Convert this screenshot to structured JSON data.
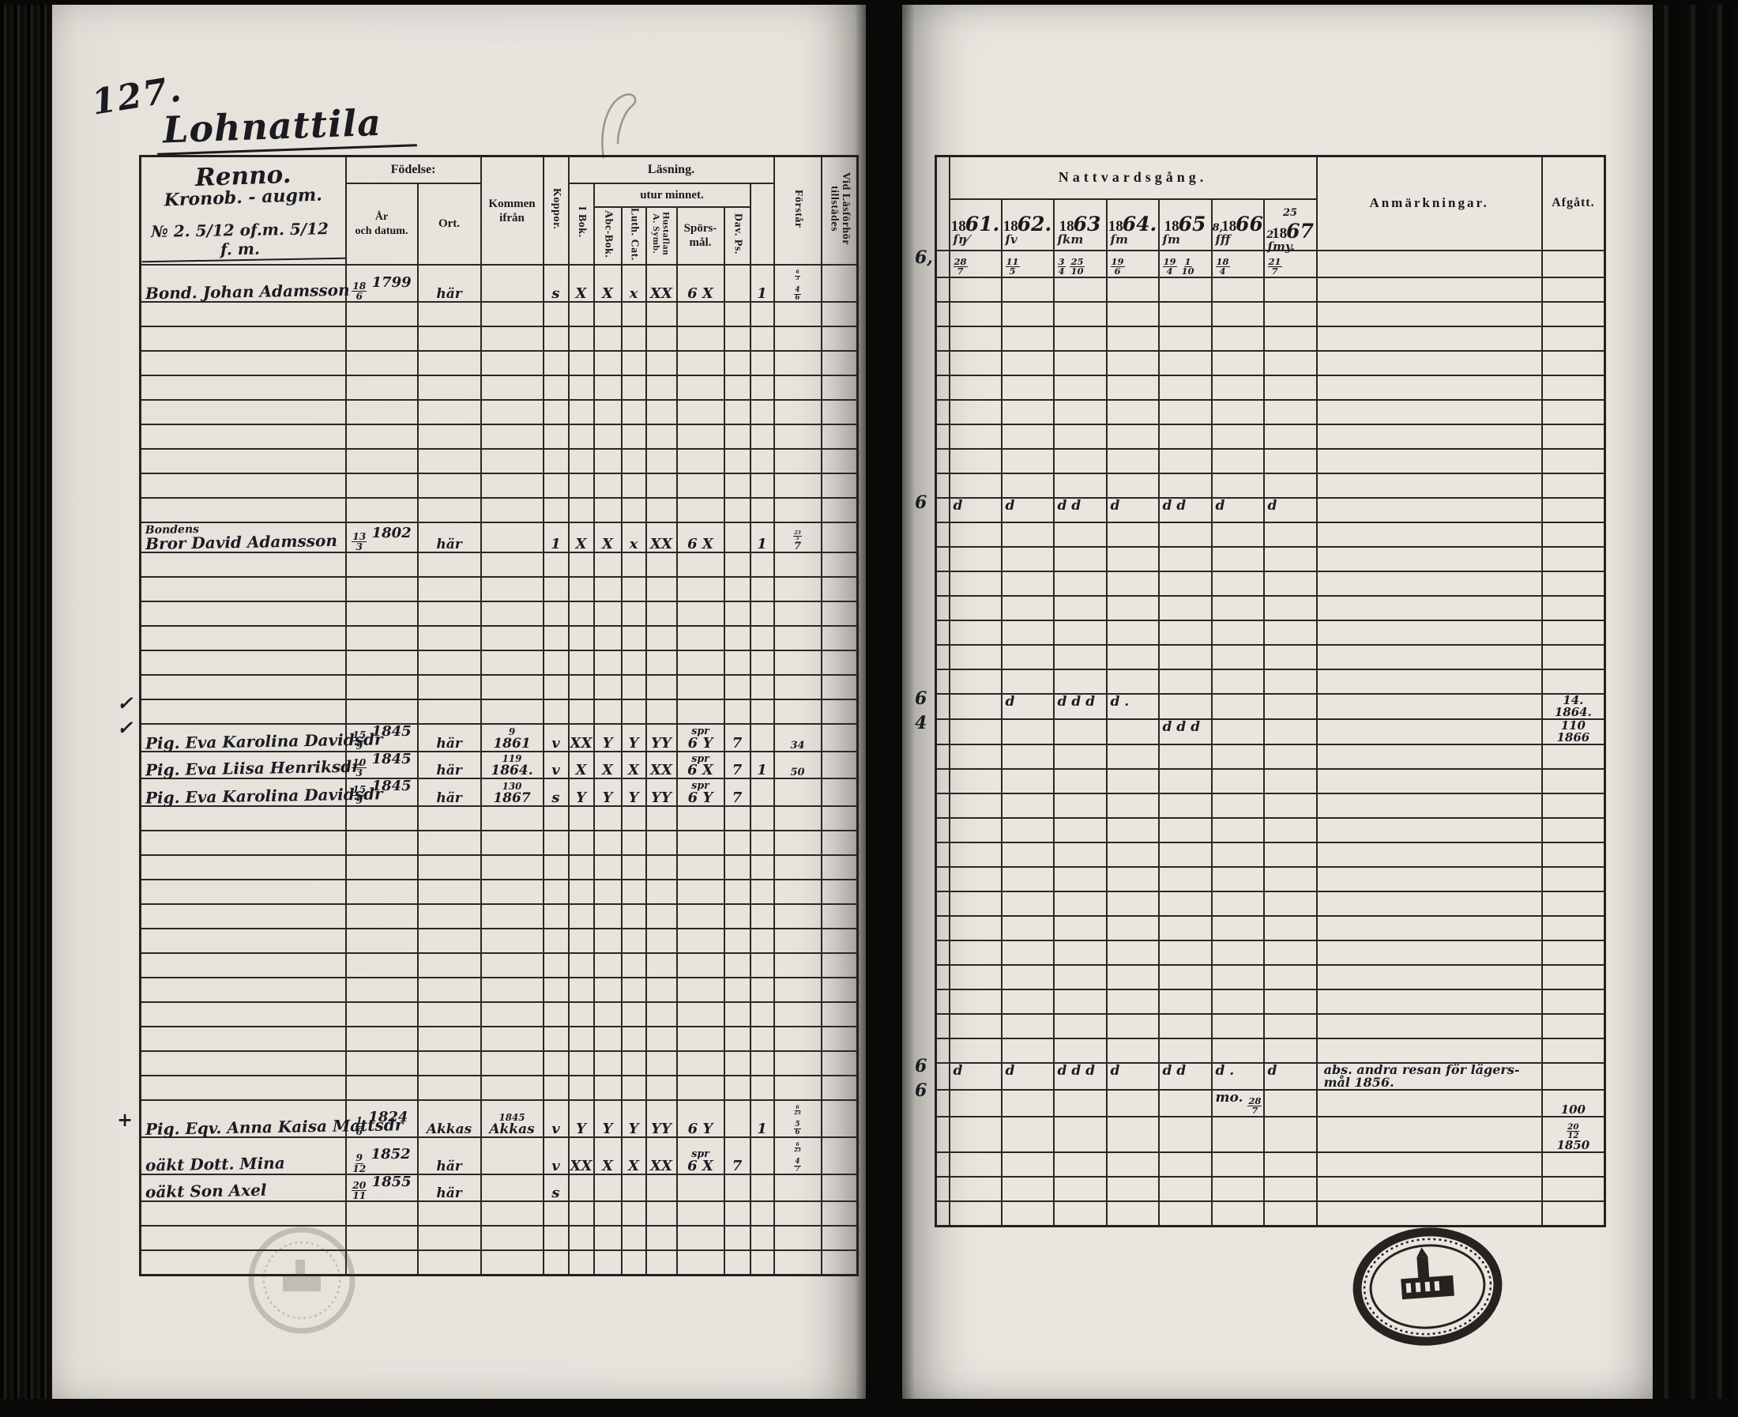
{
  "page": {
    "number": "127.",
    "title": "Lohnattila",
    "estate_name": "Renno.",
    "estate_sub": "Kronob. - augm.",
    "estate_note": "№ 2. 5/12 of.m. 5/12 f. m."
  },
  "labels": {
    "fodelse": "Födelse:",
    "ar_och_datum": "År\noch datum.",
    "ort": "Ort.",
    "kommen_ifran": "Kommen ifrån",
    "koppor": "Koppor.",
    "lasning": "Läsning.",
    "i_bok": "I Bok.",
    "utur_minnet": "utur minnet.",
    "abc_bok": "Abc-Bok.",
    "luth_cat": "Luth. Cat.",
    "hustaflan": "Hustaflan\nA. Symb.",
    "sporsmal": "Spörs-\nmål.",
    "dav_ps": "Dav. Ps.",
    "forstar": "Förstår",
    "vid_lasforhor": "Vid Läsförhör\ntillstädes",
    "nattvardsgang": "Nattvardsgång.",
    "anmarkningar": "Anmärkningar.",
    "afgatt": "Afgått."
  },
  "left_table": {
    "entries": [
      {
        "row": 0,
        "name": "Bond. Johan Adamsson",
        "birth": "18/6 1799",
        "ort": "här",
        "kommen": "",
        "marks": {
          "koppor": "s",
          "ibok": "X",
          "abc": "X",
          "luth": "x",
          "hust": "XX",
          "spors": "6 X",
          "dav": "",
          "forstar": "1",
          "vid": "6/3|4/6"
        }
      },
      {
        "row": 10,
        "name": "Bondens|Bror David Adamsson",
        "birth": "13/3 1802",
        "ort": "här",
        "kommen": "",
        "marks": {
          "koppor": "1",
          "ibok": "X",
          "abc": "X",
          "luth": "x",
          "hust": "XX",
          "spors": "6 X",
          "dav": "",
          "forstar": "1",
          "vid": "23/5|7"
        }
      },
      {
        "row": 18,
        "name": "Pig. Eva Karolina Davidsdr",
        "birth": "15/9 1845",
        "ort": "här",
        "kommen": "9|1861",
        "marks": {
          "koppor": "v",
          "ibok": "XX",
          "abc": "Y",
          "luth": "Y",
          "hust": "YY",
          "spors": "spr|6 Y",
          "dav": "7",
          "forstar": "",
          "vid": "34"
        }
      },
      {
        "row": 19,
        "name": "Pig. Eva Liisa Henriksdr",
        "birth": "10/3 1845",
        "ort": "här",
        "kommen": "119|1864.",
        "marks": {
          "koppor": "v",
          "ibok": "X",
          "abc": "X",
          "luth": "X",
          "hust": "XX",
          "spors": "spr|6 X",
          "dav": "7",
          "forstar": "1",
          "vid": "50"
        }
      },
      {
        "row": 20,
        "name": "Pig. Eva Karolina Davidsdr",
        "birth": "15/9 1845",
        "ort": "här",
        "kommen": "130|1867",
        "marks": {
          "koppor": "s",
          "ibok": "Y",
          "abc": "Y",
          "luth": "Y",
          "hust": "YY",
          "spors": "spr|6 Y",
          "dav": "7",
          "forstar": "",
          "vid": ""
        }
      },
      {
        "row": 33,
        "name": "Pig. Eqv. Anna Kaisa Mattsdr",
        "birth": "1/6 1824",
        "ort": "Akkas",
        "kommen": "1845|Akkas",
        "marks": {
          "koppor": "v",
          "ibok": "Y",
          "abc": "Y",
          "luth": "Y",
          "hust": "YY",
          "spors": "6 Y",
          "dav": "",
          "forstar": "1",
          "vid": "6/23|5/6"
        }
      },
      {
        "row": 34,
        "name": "oäkt Dott. Mina",
        "birth": "9/12 1852",
        "ort": "här",
        "kommen": "",
        "marks": {
          "koppor": "v",
          "ibok": "XX",
          "abc": "X",
          "luth": "X",
          "hust": "XX",
          "spors": "spr|6 X",
          "dav": "7",
          "forstar": "",
          "vid": "6/23|4/7"
        }
      },
      {
        "row": 35,
        "name": "oäkt Son Axel",
        "birth": "20/11 1855",
        "ort": "här",
        "kommen": "",
        "marks": {
          "koppor": "s",
          "ibok": "",
          "abc": "",
          "luth": "",
          "hust": "",
          "spors": "",
          "dav": "",
          "forstar": "",
          "vid": ""
        }
      }
    ]
  },
  "right_table": {
    "years": [
      "1861.",
      "1862.",
      "1863",
      "1864.",
      "1865",
      "1866",
      "1867"
    ],
    "year_marks": [
      "ſŋ⁄",
      "ſv",
      "ſkm",
      "ſm",
      "ſm",
      "ſff",
      "ſmy."
    ],
    "year_premarks": [
      "",
      "",
      "",
      "",
      "",
      "8,",
      "25 2"
    ],
    "entries": [
      {
        "row": 0,
        "margin": "6,",
        "years": [
          "28/7",
          "11/5",
          "3/4 25/10",
          "19/6",
          "19/4 1/10",
          "18/4",
          "21/7"
        ],
        "anm": "",
        "afgatt": ""
      },
      {
        "row": 10,
        "margin": "6",
        "years": [
          "d",
          "d",
          "d d",
          "d",
          "d d",
          "d",
          "d"
        ],
        "anm": "",
        "afgatt": ""
      },
      {
        "row": 18,
        "margin": "6",
        "years": [
          "",
          "d",
          "d d d",
          "d .",
          "",
          "",
          ""
        ],
        "anm": "",
        "afgatt": "14.|1864."
      },
      {
        "row": 19,
        "margin": "4",
        "years": [
          "",
          "",
          "",
          "",
          "d d d",
          "",
          ""
        ],
        "anm": "",
        "afgatt": "110|1866"
      },
      {
        "row": 33,
        "margin": "6",
        "years": [
          "d",
          "d",
          "d d d",
          "d",
          "d d",
          "d .",
          "d"
        ],
        "anm": "abs. andra resan för lägers-|mål 1856.",
        "afgatt": ""
      },
      {
        "row": 34,
        "margin": "6",
        "years": [
          "",
          "",
          "",
          "",
          "",
          "mo. 28/7",
          ""
        ],
        "anm": "",
        "afgatt": "100"
      },
      {
        "row": 35,
        "margin": "",
        "years": [
          "",
          "",
          "",
          "",
          "",
          "",
          ""
        ],
        "anm": "",
        "afgatt": "20/12|1850"
      }
    ]
  },
  "marginalia": {
    "prefix_marks": [
      {
        "row": 18,
        "glyph": "✓"
      },
      {
        "row": 19,
        "glyph": "✓"
      },
      {
        "row": 35,
        "glyph": "+"
      }
    ]
  },
  "colors": {
    "ink": "#1c1a21",
    "paper": "#e6e4dd",
    "line": "#2b2823"
  }
}
